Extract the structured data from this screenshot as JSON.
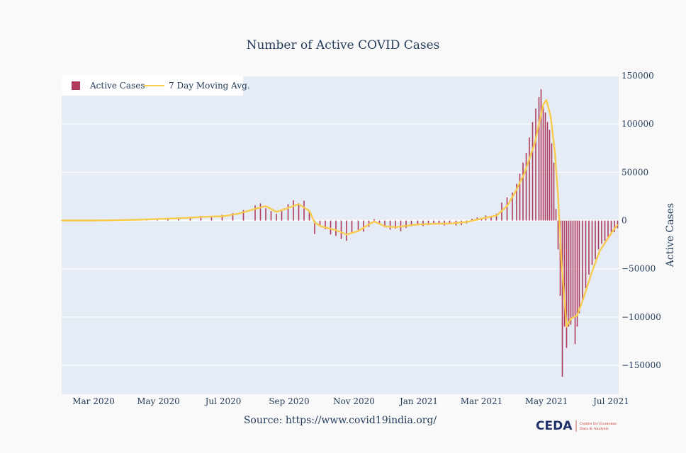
{
  "chart_data": {
    "type": "bar",
    "title": "Number of Active COVID Cases",
    "ylabel": "Active Cases",
    "xlabel": "",
    "x_range": [
      "2020-01-31",
      "2021-07-08"
    ],
    "ylim": [
      -180000,
      150000
    ],
    "y_ticks": [
      150000,
      100000,
      50000,
      0,
      -50000,
      -100000,
      -150000
    ],
    "y_tick_labels": [
      "150000",
      "100000",
      "50000",
      "0",
      "−50000",
      "−100000",
      "−150000"
    ],
    "x_ticks": [
      "2020-03-01",
      "2020-05-01",
      "2020-07-01",
      "2020-09-01",
      "2020-11-01",
      "2021-01-01",
      "2021-03-01",
      "2021-05-01",
      "2021-07-01"
    ],
    "x_tick_labels": [
      "Mar 2020",
      "May 2020",
      "Jul 2020",
      "Sep 2020",
      "Nov 2020",
      "Jan 2021",
      "Mar 2021",
      "May 2021",
      "Jul 2021"
    ],
    "legend_position": "top-left",
    "grid": true,
    "series": [
      {
        "name": "Active Cases",
        "kind": "bar",
        "color": "#b03a5b",
        "points": [
          [
            "2020-01-31",
            0
          ],
          [
            "2020-02-10",
            0
          ],
          [
            "2020-02-20",
            0
          ],
          [
            "2020-03-01",
            0
          ],
          [
            "2020-03-10",
            60
          ],
          [
            "2020-03-20",
            250
          ],
          [
            "2020-03-31",
            1100
          ],
          [
            "2020-04-10",
            700
          ],
          [
            "2020-04-20",
            1400
          ],
          [
            "2020-04-30",
            1700
          ],
          [
            "2020-05-10",
            2400
          ],
          [
            "2020-05-20",
            3200
          ],
          [
            "2020-05-31",
            3900
          ],
          [
            "2020-06-10",
            4800
          ],
          [
            "2020-06-20",
            4200
          ],
          [
            "2020-06-30",
            5800
          ],
          [
            "2020-07-10",
            7600
          ],
          [
            "2020-07-20",
            10800
          ],
          [
            "2020-07-31",
            15600
          ],
          [
            "2020-08-05",
            17800
          ],
          [
            "2020-08-10",
            12800
          ],
          [
            "2020-08-15",
            9800
          ],
          [
            "2020-08-20",
            6800
          ],
          [
            "2020-08-25",
            9800
          ],
          [
            "2020-08-31",
            17000
          ],
          [
            "2020-09-05",
            21000
          ],
          [
            "2020-09-10",
            18000
          ],
          [
            "2020-09-15",
            20500
          ],
          [
            "2020-09-20",
            9000
          ],
          [
            "2020-09-25",
            -14000
          ],
          [
            "2020-09-30",
            -4500
          ],
          [
            "2020-10-05",
            -9000
          ],
          [
            "2020-10-10",
            -14500
          ],
          [
            "2020-10-15",
            -16000
          ],
          [
            "2020-10-20",
            -19000
          ],
          [
            "2020-10-25",
            -21000
          ],
          [
            "2020-10-30",
            -13000
          ],
          [
            "2020-11-05",
            -9800
          ],
          [
            "2020-11-10",
            -11500
          ],
          [
            "2020-11-15",
            -6500
          ],
          [
            "2020-11-20",
            1500
          ],
          [
            "2020-11-25",
            -2500
          ],
          [
            "2020-11-30",
            -7000
          ],
          [
            "2020-12-05",
            -9500
          ],
          [
            "2020-12-10",
            -8500
          ],
          [
            "2020-12-15",
            -11000
          ],
          [
            "2020-12-20",
            -7800
          ],
          [
            "2020-12-25",
            -6000
          ],
          [
            "2020-12-31",
            -4800
          ],
          [
            "2021-01-05",
            -5800
          ],
          [
            "2021-01-10",
            -4800
          ],
          [
            "2021-01-15",
            -4000
          ],
          [
            "2021-01-20",
            -3800
          ],
          [
            "2021-01-25",
            -5200
          ],
          [
            "2021-01-30",
            -4000
          ],
          [
            "2021-02-05",
            -5200
          ],
          [
            "2021-02-10",
            -4800
          ],
          [
            "2021-02-15",
            -3000
          ],
          [
            "2021-02-20",
            1800
          ],
          [
            "2021-02-25",
            3200
          ],
          [
            "2021-03-01",
            2800
          ],
          [
            "2021-03-05",
            5200
          ],
          [
            "2021-03-10",
            3800
          ],
          [
            "2021-03-15",
            7000
          ],
          [
            "2021-03-20",
            18500
          ],
          [
            "2021-03-25",
            24000
          ],
          [
            "2021-03-30",
            29000
          ],
          [
            "2021-04-03",
            38000
          ],
          [
            "2021-04-06",
            48500
          ],
          [
            "2021-04-09",
            60000
          ],
          [
            "2021-04-12",
            70000
          ],
          [
            "2021-04-15",
            86000
          ],
          [
            "2021-04-18",
            102000
          ],
          [
            "2021-04-21",
            116000
          ],
          [
            "2021-04-24",
            128000
          ],
          [
            "2021-04-26",
            136000
          ],
          [
            "2021-04-28",
            118000
          ],
          [
            "2021-04-30",
            112000
          ],
          [
            "2021-05-02",
            102000
          ],
          [
            "2021-05-04",
            94000
          ],
          [
            "2021-05-06",
            80000
          ],
          [
            "2021-05-08",
            60000
          ],
          [
            "2021-05-10",
            12000
          ],
          [
            "2021-05-12",
            -30000
          ],
          [
            "2021-05-14",
            -78000
          ],
          [
            "2021-05-16",
            -162000
          ],
          [
            "2021-05-18",
            -110000
          ],
          [
            "2021-05-20",
            -132000
          ],
          [
            "2021-05-22",
            -110000
          ],
          [
            "2021-05-24",
            -108000
          ],
          [
            "2021-05-26",
            -101000
          ],
          [
            "2021-05-28",
            -128000
          ],
          [
            "2021-05-30",
            -110000
          ],
          [
            "2021-06-01",
            -96000
          ],
          [
            "2021-06-04",
            -84000
          ],
          [
            "2021-06-07",
            -70000
          ],
          [
            "2021-06-10",
            -56000
          ],
          [
            "2021-06-13",
            -46000
          ],
          [
            "2021-06-16",
            -40000
          ],
          [
            "2021-06-19",
            -30000
          ],
          [
            "2021-06-22",
            -24000
          ],
          [
            "2021-06-25",
            -21000
          ],
          [
            "2021-06-28",
            -19000
          ],
          [
            "2021-07-01",
            -14000
          ],
          [
            "2021-07-04",
            -12000
          ],
          [
            "2021-07-07",
            -8000
          ]
        ]
      },
      {
        "name": "7 Day Moving Avg.",
        "kind": "line",
        "color": "#f7cb4d",
        "points": [
          [
            "2020-01-31",
            0
          ],
          [
            "2020-03-01",
            0
          ],
          [
            "2020-03-20",
            300
          ],
          [
            "2020-04-10",
            800
          ],
          [
            "2020-05-01",
            1500
          ],
          [
            "2020-05-31",
            2900
          ],
          [
            "2020-06-15",
            3900
          ],
          [
            "2020-07-01",
            4400
          ],
          [
            "2020-07-15",
            7000
          ],
          [
            "2020-07-31",
            12000
          ],
          [
            "2020-08-10",
            15000
          ],
          [
            "2020-08-20",
            9000
          ],
          [
            "2020-08-31",
            13000
          ],
          [
            "2020-09-10",
            17000
          ],
          [
            "2020-09-20",
            10000
          ],
          [
            "2020-09-25",
            -2000
          ],
          [
            "2020-10-01",
            -6000
          ],
          [
            "2020-10-15",
            -10000
          ],
          [
            "2020-10-25",
            -14500
          ],
          [
            "2020-11-05",
            -11000
          ],
          [
            "2020-11-15",
            -4000
          ],
          [
            "2020-11-20",
            -1000
          ],
          [
            "2020-11-30",
            -6000
          ],
          [
            "2020-12-10",
            -7000
          ],
          [
            "2020-12-20",
            -5500
          ],
          [
            "2021-01-01",
            -4000
          ],
          [
            "2021-01-15",
            -3500
          ],
          [
            "2021-02-01",
            -3000
          ],
          [
            "2021-02-15",
            -1500
          ],
          [
            "2021-03-01",
            2000
          ],
          [
            "2021-03-15",
            5000
          ],
          [
            "2021-03-25",
            15000
          ],
          [
            "2021-04-01",
            28000
          ],
          [
            "2021-04-10",
            48000
          ],
          [
            "2021-04-20",
            80000
          ],
          [
            "2021-04-28",
            120000
          ],
          [
            "2021-05-01",
            125000
          ],
          [
            "2021-05-05",
            108000
          ],
          [
            "2021-05-09",
            70000
          ],
          [
            "2021-05-12",
            25000
          ],
          [
            "2021-05-15",
            -40000
          ],
          [
            "2021-05-20",
            -110000
          ],
          [
            "2021-05-24",
            -102000
          ],
          [
            "2021-05-30",
            -98000
          ],
          [
            "2021-06-05",
            -80000
          ],
          [
            "2021-06-12",
            -56000
          ],
          [
            "2021-06-20",
            -32000
          ],
          [
            "2021-06-28",
            -18000
          ],
          [
            "2021-07-07",
            -4000
          ]
        ]
      }
    ]
  },
  "source_text": "Source: https://www.covid19india.org/",
  "logo": {
    "text": "CEDA",
    "subtitle_line1": "Centre for Economic",
    "subtitle_line2": "Data & Analysis"
  }
}
